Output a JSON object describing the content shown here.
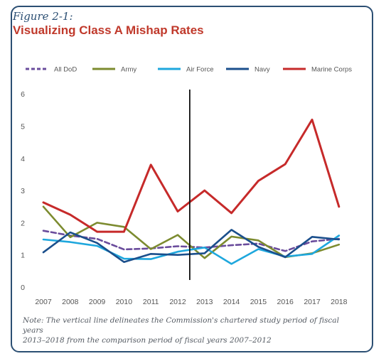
{
  "figure": {
    "label": "Figure 2-1:",
    "title": "Visualizing Class A Mishap Rates",
    "note_line1": "Note: The vertical line delineates the Commission's chartered study period of fiscal years",
    "note_line2": "2013–2018 from the comparison period of fiscal years 2007–2012"
  },
  "chart_data": {
    "type": "line",
    "categories": [
      "2007",
      "2008",
      "2009",
      "2010",
      "2011",
      "2012",
      "2013",
      "2014",
      "2015",
      "2016",
      "2017",
      "2018"
    ],
    "ylim": [
      0,
      6
    ],
    "yticks": [
      "0",
      "1",
      "2",
      "3",
      "4",
      "5",
      "6"
    ],
    "grid": false,
    "legend_position": "top",
    "divider_between": [
      "2012",
      "2013"
    ],
    "series": [
      {
        "name": "All DoD",
        "color": "#6a4c9c",
        "dashed": true,
        "values": [
          1.75,
          1.6,
          1.5,
          1.17,
          1.2,
          1.27,
          1.23,
          1.3,
          1.35,
          1.12,
          1.42,
          1.5
        ]
      },
      {
        "name": "Army",
        "color": "#7c8b2f",
        "dashed": false,
        "values": [
          2.5,
          1.55,
          2.0,
          1.87,
          1.18,
          1.62,
          0.9,
          1.57,
          1.45,
          0.93,
          1.05,
          1.32
        ]
      },
      {
        "name": "Air Force",
        "color": "#1ea7dd",
        "dashed": false,
        "values": [
          1.48,
          1.4,
          1.28,
          0.88,
          0.87,
          1.1,
          1.23,
          0.72,
          1.18,
          0.95,
          1.03,
          1.6
        ]
      },
      {
        "name": "Navy",
        "color": "#1b4f8c",
        "dashed": false,
        "values": [
          1.08,
          1.7,
          1.37,
          0.78,
          1.03,
          1.0,
          1.05,
          1.78,
          1.25,
          0.93,
          1.56,
          1.48
        ]
      },
      {
        "name": "Marine Corps",
        "color": "#c62a2a",
        "dashed": false,
        "values": [
          2.63,
          2.25,
          1.72,
          1.72,
          3.8,
          2.35,
          3.0,
          2.3,
          3.3,
          3.82,
          5.2,
          2.5
        ]
      }
    ]
  }
}
